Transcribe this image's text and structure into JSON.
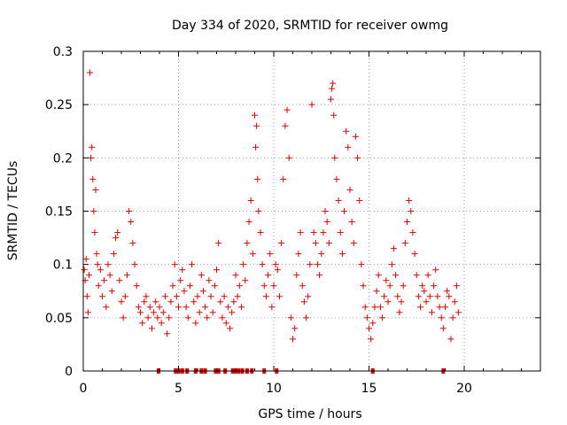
{
  "chart_data": {
    "type": "scatter",
    "title": "Day 334 of 2020, SRMTID for receiver owmg",
    "xlabel": "GPS time / hours",
    "ylabel": "SRMTID / TECUs",
    "xlim": [
      0,
      24
    ],
    "ylim": [
      0,
      0.3
    ],
    "xticks": [
      0,
      5,
      10,
      15,
      20
    ],
    "xtick_labels": [
      "0",
      "5",
      "10",
      "15",
      "20"
    ],
    "yticks": [
      0,
      0.05,
      0.1,
      0.15,
      0.2,
      0.25,
      0.3
    ],
    "ytick_labels": [
      "0",
      "0.05",
      "0.1",
      "0.15",
      "0.2",
      "0.25",
      "0.3"
    ],
    "grid": true,
    "marker": "+",
    "color": "#e00000",
    "zero_markers_x": [
      3.95,
      4.85,
      5.0,
      5.2,
      5.45,
      5.9,
      6.2,
      6.4,
      6.95,
      7.1,
      7.45,
      7.85,
      8.0,
      8.15,
      8.35,
      8.6,
      8.85,
      9.5,
      10.15,
      15.2,
      18.9
    ],
    "series": [
      {
        "name": "SRMTID",
        "points": [
          [
            0.05,
            0.095
          ],
          [
            0.1,
            0.085
          ],
          [
            0.15,
            0.105
          ],
          [
            0.2,
            0.07
          ],
          [
            0.25,
            0.055
          ],
          [
            0.3,
            0.09
          ],
          [
            0.35,
            0.28
          ],
          [
            0.4,
            0.2
          ],
          [
            0.45,
            0.21
          ],
          [
            0.5,
            0.18
          ],
          [
            0.55,
            0.15
          ],
          [
            0.6,
            0.13
          ],
          [
            0.65,
            0.17
          ],
          [
            0.7,
            0.11
          ],
          [
            0.75,
            0.1
          ],
          [
            0.8,
            0.08
          ],
          [
            0.9,
            0.095
          ],
          [
            1.0,
            0.07
          ],
          [
            1.1,
            0.085
          ],
          [
            1.2,
            0.06
          ],
          [
            1.3,
            0.1
          ],
          [
            1.4,
            0.09
          ],
          [
            1.5,
            0.075
          ],
          [
            1.6,
            0.11
          ],
          [
            1.7,
            0.125
          ],
          [
            1.8,
            0.13
          ],
          [
            1.9,
            0.085
          ],
          [
            2.0,
            0.065
          ],
          [
            2.1,
            0.05
          ],
          [
            2.2,
            0.07
          ],
          [
            2.3,
            0.09
          ],
          [
            2.4,
            0.15
          ],
          [
            2.5,
            0.14
          ],
          [
            2.6,
            0.12
          ],
          [
            2.7,
            0.1
          ],
          [
            2.8,
            0.08
          ],
          [
            2.9,
            0.06
          ],
          [
            3.0,
            0.055
          ],
          [
            3.1,
            0.045
          ],
          [
            3.2,
            0.065
          ],
          [
            3.3,
            0.07
          ],
          [
            3.4,
            0.05
          ],
          [
            3.5,
            0.06
          ],
          [
            3.6,
            0.04
          ],
          [
            3.7,
            0.055
          ],
          [
            3.8,
            0.065
          ],
          [
            3.9,
            0.05
          ],
          [
            4.0,
            0.06
          ],
          [
            4.1,
            0.045
          ],
          [
            4.2,
            0.055
          ],
          [
            4.3,
            0.07
          ],
          [
            4.4,
            0.035
          ],
          [
            4.5,
            0.05
          ],
          [
            4.6,
            0.065
          ],
          [
            4.7,
            0.08
          ],
          [
            4.8,
            0.1
          ],
          [
            4.9,
            0.07
          ],
          [
            5.0,
            0.06
          ],
          [
            5.1,
            0.085
          ],
          [
            5.2,
            0.095
          ],
          [
            5.3,
            0.075
          ],
          [
            5.4,
            0.06
          ],
          [
            5.5,
            0.05
          ],
          [
            5.6,
            0.08
          ],
          [
            5.7,
            0.1
          ],
          [
            5.8,
            0.065
          ],
          [
            5.9,
            0.045
          ],
          [
            6.0,
            0.07
          ],
          [
            6.1,
            0.055
          ],
          [
            6.2,
            0.09
          ],
          [
            6.3,
            0.075
          ],
          [
            6.4,
            0.06
          ],
          [
            6.5,
            0.05
          ],
          [
            6.6,
            0.085
          ],
          [
            6.7,
            0.07
          ],
          [
            6.8,
            0.055
          ],
          [
            6.9,
            0.08
          ],
          [
            7.0,
            0.095
          ],
          [
            7.1,
            0.12
          ],
          [
            7.2,
            0.065
          ],
          [
            7.3,
            0.05
          ],
          [
            7.4,
            0.07
          ],
          [
            7.5,
            0.045
          ],
          [
            7.6,
            0.06
          ],
          [
            7.7,
            0.04
          ],
          [
            7.8,
            0.055
          ],
          [
            7.9,
            0.065
          ],
          [
            8.0,
            0.09
          ],
          [
            8.1,
            0.07
          ],
          [
            8.2,
            0.08
          ],
          [
            8.3,
            0.06
          ],
          [
            8.4,
            0.1
          ],
          [
            8.5,
            0.085
          ],
          [
            8.6,
            0.12
          ],
          [
            8.7,
            0.14
          ],
          [
            8.8,
            0.16
          ],
          [
            8.9,
            0.11
          ],
          [
            9.0,
            0.24
          ],
          [
            9.05,
            0.21
          ],
          [
            9.1,
            0.23
          ],
          [
            9.15,
            0.18
          ],
          [
            9.2,
            0.15
          ],
          [
            9.3,
            0.13
          ],
          [
            9.4,
            0.1
          ],
          [
            9.5,
            0.08
          ],
          [
            9.6,
            0.07
          ],
          [
            9.7,
            0.09
          ],
          [
            9.8,
            0.11
          ],
          [
            9.9,
            0.06
          ],
          [
            10.0,
            0.08
          ],
          [
            10.1,
            0.1
          ],
          [
            10.2,
            0.095
          ],
          [
            10.3,
            0.07
          ],
          [
            10.4,
            0.12
          ],
          [
            10.5,
            0.18
          ],
          [
            10.6,
            0.23
          ],
          [
            10.7,
            0.245
          ],
          [
            10.8,
            0.2
          ],
          [
            10.9,
            0.05
          ],
          [
            11.0,
            0.03
          ],
          [
            11.1,
            0.04
          ],
          [
            11.2,
            0.09
          ],
          [
            11.3,
            0.11
          ],
          [
            11.4,
            0.13
          ],
          [
            11.5,
            0.08
          ],
          [
            11.6,
            0.065
          ],
          [
            11.7,
            0.05
          ],
          [
            11.8,
            0.07
          ],
          [
            11.9,
            0.1
          ],
          [
            12.0,
            0.25
          ],
          [
            12.1,
            0.13
          ],
          [
            12.2,
            0.12
          ],
          [
            12.3,
            0.1
          ],
          [
            12.4,
            0.09
          ],
          [
            12.5,
            0.11
          ],
          [
            12.6,
            0.13
          ],
          [
            12.7,
            0.15
          ],
          [
            12.8,
            0.14
          ],
          [
            12.9,
            0.12
          ],
          [
            13.0,
            0.255
          ],
          [
            13.05,
            0.265
          ],
          [
            13.1,
            0.27
          ],
          [
            13.15,
            0.24
          ],
          [
            13.2,
            0.2
          ],
          [
            13.3,
            0.18
          ],
          [
            13.4,
            0.16
          ],
          [
            13.5,
            0.13
          ],
          [
            13.6,
            0.11
          ],
          [
            13.7,
            0.15
          ],
          [
            13.8,
            0.225
          ],
          [
            13.9,
            0.21
          ],
          [
            14.0,
            0.17
          ],
          [
            14.1,
            0.14
          ],
          [
            14.2,
            0.12
          ],
          [
            14.3,
            0.22
          ],
          [
            14.4,
            0.2
          ],
          [
            14.5,
            0.16
          ],
          [
            14.6,
            0.1
          ],
          [
            14.7,
            0.08
          ],
          [
            14.8,
            0.06
          ],
          [
            14.9,
            0.05
          ],
          [
            15.0,
            0.04
          ],
          [
            15.1,
            0.03
          ],
          [
            15.2,
            0.045
          ],
          [
            15.3,
            0.06
          ],
          [
            15.4,
            0.075
          ],
          [
            15.5,
            0.09
          ],
          [
            15.6,
            0.06
          ],
          [
            15.7,
            0.05
          ],
          [
            15.8,
            0.07
          ],
          [
            15.9,
            0.085
          ],
          [
            16.0,
            0.065
          ],
          [
            16.1,
            0.08
          ],
          [
            16.2,
            0.1
          ],
          [
            16.3,
            0.115
          ],
          [
            16.4,
            0.09
          ],
          [
            16.5,
            0.07
          ],
          [
            16.6,
            0.055
          ],
          [
            16.7,
            0.065
          ],
          [
            16.8,
            0.08
          ],
          [
            16.9,
            0.12
          ],
          [
            17.0,
            0.14
          ],
          [
            17.1,
            0.16
          ],
          [
            17.2,
            0.15
          ],
          [
            17.3,
            0.13
          ],
          [
            17.4,
            0.11
          ],
          [
            17.5,
            0.09
          ],
          [
            17.6,
            0.07
          ],
          [
            17.7,
            0.06
          ],
          [
            17.8,
            0.08
          ],
          [
            17.9,
            0.075
          ],
          [
            18.0,
            0.065
          ],
          [
            18.1,
            0.09
          ],
          [
            18.2,
            0.07
          ],
          [
            18.3,
            0.055
          ],
          [
            18.4,
            0.08
          ],
          [
            18.5,
            0.095
          ],
          [
            18.6,
            0.07
          ],
          [
            18.7,
            0.06
          ],
          [
            18.8,
            0.05
          ],
          [
            18.9,
            0.04
          ],
          [
            19.0,
            0.06
          ],
          [
            19.1,
            0.075
          ],
          [
            19.2,
            0.07
          ],
          [
            19.3,
            0.03
          ],
          [
            19.4,
            0.05
          ],
          [
            19.5,
            0.065
          ],
          [
            19.6,
            0.08
          ],
          [
            19.7,
            0.055
          ]
        ]
      }
    ]
  }
}
